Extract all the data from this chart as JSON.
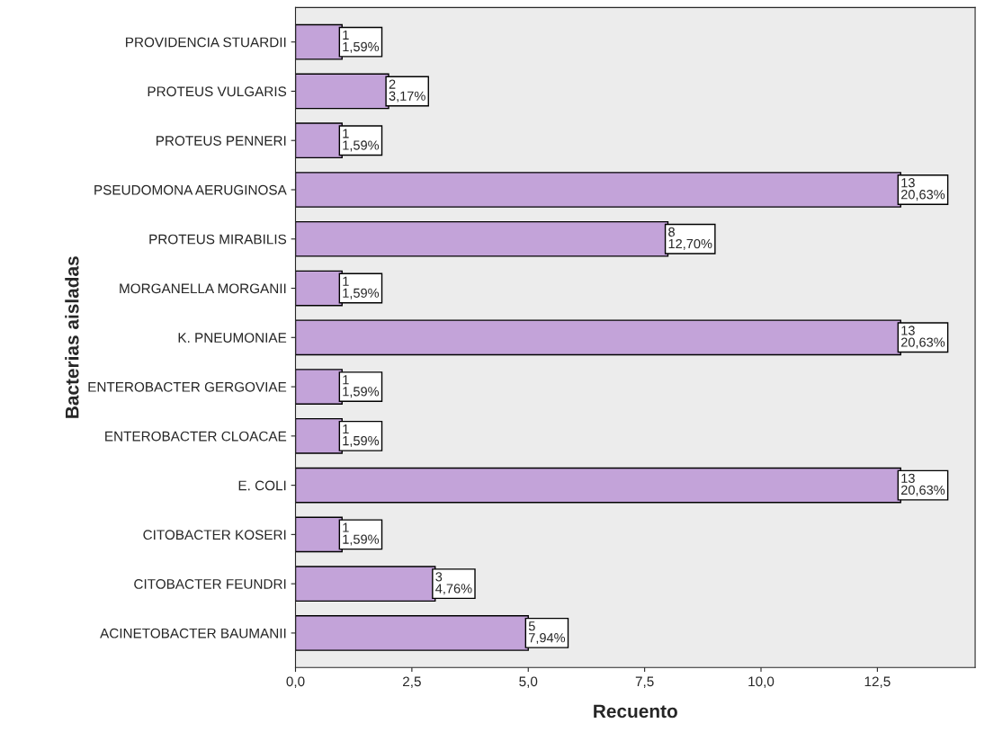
{
  "chart_data": {
    "type": "bar",
    "orientation": "horizontal",
    "xlabel": "Recuento",
    "ylabel": "Bacterias aisladas",
    "categories": [
      "PROVIDENCIA STUARDII",
      "PROTEUS VULGARIS",
      "PROTEUS PENNERI",
      "PSEUDOMONA AERUGINOSA",
      "PROTEUS MIRABILIS",
      "MORGANELLA MORGANII",
      "K. PNEUMONIAE",
      "ENTEROBACTER GERGOVIAE",
      "ENTEROBACTER CLOACAE",
      "E. COLI",
      "CITOBACTER KOSERI",
      "CITOBACTER FEUNDRI",
      "ACINETOBACTER BAUMANII"
    ],
    "values": [
      1,
      2,
      1,
      13,
      8,
      1,
      13,
      1,
      1,
      13,
      1,
      3,
      5
    ],
    "value_labels": [
      "1\n1,59%",
      "2\n3,17%",
      "1\n1,59%",
      "13\n20,63%",
      "8\n12,70%",
      "1\n1,59%",
      "13\n20,63%",
      "1\n1,59%",
      "1\n1,59%",
      "13\n20,63%",
      "1\n1,59%",
      "3\n4,76%",
      "5\n7,94%"
    ],
    "color": "#c3a3d9",
    "xlim": [
      0,
      14.6
    ],
    "xticks": [
      {
        "value": 0,
        "label": "0,0"
      },
      {
        "value": 2.5,
        "label": "2,5"
      },
      {
        "value": 5,
        "label": "5,0"
      },
      {
        "value": 7.5,
        "label": "7,5"
      },
      {
        "value": 10,
        "label": "10,0"
      },
      {
        "value": 12.5,
        "label": "12,5"
      }
    ],
    "grid": false,
    "legend": false
  }
}
